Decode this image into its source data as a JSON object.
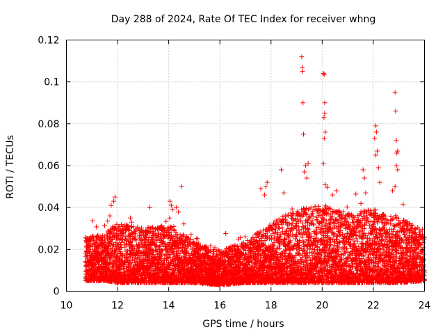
{
  "chart_data": {
    "type": "scatter",
    "title": "Day 288 of 2024, Rate Of TEC Index for receiver whng",
    "xlabel": "GPS time / hours",
    "ylabel": "ROTI / TECUs",
    "xlim": [
      10,
      24
    ],
    "ylim": [
      0,
      0.12
    ],
    "x_ticks": [
      10,
      12,
      14,
      16,
      18,
      20,
      22,
      24
    ],
    "x_tick_labels": [
      "10",
      "12",
      "14",
      "16",
      "18",
      "20",
      "22",
      "24"
    ],
    "y_ticks": [
      0,
      0.02,
      0.04,
      0.06,
      0.08,
      0.1,
      0.12
    ],
    "y_tick_labels": [
      "0",
      "0.02",
      "0.04",
      "0.06",
      "0.08",
      "0.1",
      "0.12"
    ],
    "grid": true,
    "marker": "plus",
    "marker_color": "#ff0000",
    "series": [
      {
        "name": "ROTI",
        "band": {
          "x_start": 10.75,
          "x_end": 24.0,
          "step_hours": 0.012,
          "samples_per_step": 6,
          "envelope": [
            {
              "x": 10.75,
              "low": 0.005,
              "typ_high": 0.024
            },
            {
              "x": 11.5,
              "low": 0.005,
              "typ_high": 0.026
            },
            {
              "x": 12.0,
              "low": 0.004,
              "typ_high": 0.03
            },
            {
              "x": 13.0,
              "low": 0.004,
              "typ_high": 0.028
            },
            {
              "x": 14.0,
              "low": 0.004,
              "typ_high": 0.029
            },
            {
              "x": 15.0,
              "low": 0.004,
              "typ_high": 0.022
            },
            {
              "x": 16.0,
              "low": 0.003,
              "typ_high": 0.018
            },
            {
              "x": 17.0,
              "low": 0.004,
              "typ_high": 0.022
            },
            {
              "x": 18.0,
              "low": 0.004,
              "typ_high": 0.03
            },
            {
              "x": 19.0,
              "low": 0.004,
              "typ_high": 0.036
            },
            {
              "x": 20.0,
              "low": 0.004,
              "typ_high": 0.038
            },
            {
              "x": 21.0,
              "low": 0.004,
              "typ_high": 0.034
            },
            {
              "x": 22.0,
              "low": 0.004,
              "typ_high": 0.036
            },
            {
              "x": 23.0,
              "low": 0.004,
              "typ_high": 0.033
            },
            {
              "x": 24.0,
              "low": 0.005,
              "typ_high": 0.026
            }
          ]
        },
        "outliers": [
          {
            "x": 11.75,
            "y": 0.041
          },
          {
            "x": 11.9,
            "y": 0.045
          },
          {
            "x": 11.85,
            "y": 0.043
          },
          {
            "x": 11.7,
            "y": 0.036
          },
          {
            "x": 12.5,
            "y": 0.035
          },
          {
            "x": 12.55,
            "y": 0.033
          },
          {
            "x": 14.05,
            "y": 0.043
          },
          {
            "x": 14.1,
            "y": 0.041
          },
          {
            "x": 14.15,
            "y": 0.039
          },
          {
            "x": 14.3,
            "y": 0.04
          },
          {
            "x": 14.5,
            "y": 0.05
          },
          {
            "x": 17.6,
            "y": 0.049
          },
          {
            "x": 17.8,
            "y": 0.05
          },
          {
            "x": 17.85,
            "y": 0.052
          },
          {
            "x": 17.75,
            "y": 0.046
          },
          {
            "x": 18.4,
            "y": 0.058
          },
          {
            "x": 18.5,
            "y": 0.047
          },
          {
            "x": 19.2,
            "y": 0.112
          },
          {
            "x": 19.22,
            "y": 0.107
          },
          {
            "x": 19.23,
            "y": 0.105
          },
          {
            "x": 19.25,
            "y": 0.09
          },
          {
            "x": 19.27,
            "y": 0.075
          },
          {
            "x": 19.3,
            "y": 0.057
          },
          {
            "x": 19.35,
            "y": 0.06
          },
          {
            "x": 19.4,
            "y": 0.054
          },
          {
            "x": 19.45,
            "y": 0.061
          },
          {
            "x": 20.05,
            "y": 0.104
          },
          {
            "x": 20.08,
            "y": 0.1035
          },
          {
            "x": 20.1,
            "y": 0.09
          },
          {
            "x": 20.1,
            "y": 0.085
          },
          {
            "x": 20.07,
            "y": 0.083
          },
          {
            "x": 20.12,
            "y": 0.076
          },
          {
            "x": 20.08,
            "y": 0.073
          },
          {
            "x": 20.05,
            "y": 0.061
          },
          {
            "x": 20.12,
            "y": 0.051
          },
          {
            "x": 20.4,
            "y": 0.046
          },
          {
            "x": 20.55,
            "y": 0.048
          },
          {
            "x": 21.6,
            "y": 0.058
          },
          {
            "x": 21.65,
            "y": 0.054
          },
          {
            "x": 21.7,
            "y": 0.047
          },
          {
            "x": 22.1,
            "y": 0.079
          },
          {
            "x": 22.12,
            "y": 0.076
          },
          {
            "x": 22.05,
            "y": 0.073
          },
          {
            "x": 22.15,
            "y": 0.067
          },
          {
            "x": 22.1,
            "y": 0.065
          },
          {
            "x": 22.2,
            "y": 0.059
          },
          {
            "x": 22.25,
            "y": 0.052
          },
          {
            "x": 22.85,
            "y": 0.095
          },
          {
            "x": 22.87,
            "y": 0.086
          },
          {
            "x": 22.9,
            "y": 0.072
          },
          {
            "x": 22.95,
            "y": 0.067
          },
          {
            "x": 22.92,
            "y": 0.066
          },
          {
            "x": 22.9,
            "y": 0.06
          },
          {
            "x": 22.95,
            "y": 0.058
          },
          {
            "x": 22.85,
            "y": 0.05
          },
          {
            "x": 22.75,
            "y": 0.048
          }
        ]
      }
    ]
  }
}
